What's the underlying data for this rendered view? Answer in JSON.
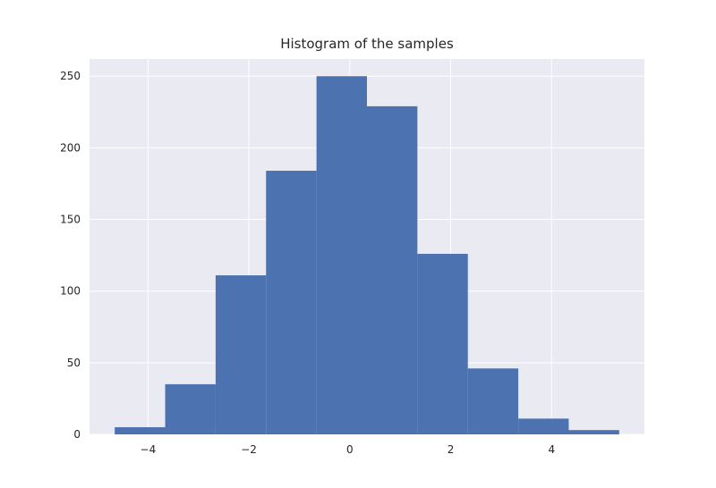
{
  "chart_data": {
    "type": "bar",
    "title": "Histogram of the samples",
    "xlabel": "",
    "ylabel": "",
    "bin_edges": [
      -4.66,
      -3.66,
      -2.66,
      -1.66,
      -0.66,
      0.34,
      1.34,
      2.34,
      3.34,
      4.34,
      5.34
    ],
    "values": [
      5,
      35,
      111,
      184,
      250,
      229,
      126,
      46,
      11,
      3
    ],
    "xlim": [
      -5.16,
      5.84
    ],
    "ylim": [
      0,
      262
    ],
    "xticks": [
      -4,
      -2,
      0,
      2,
      4
    ],
    "xtick_labels": [
      "−4",
      "−2",
      "0",
      "2",
      "4"
    ],
    "yticks": [
      0,
      50,
      100,
      150,
      200,
      250
    ],
    "ytick_labels": [
      "0",
      "50",
      "100",
      "150",
      "200",
      "250"
    ],
    "grid": true,
    "colors": {
      "bar": "#4c72b0",
      "background": "#eaeaf2",
      "grid": "#ffffff"
    }
  }
}
